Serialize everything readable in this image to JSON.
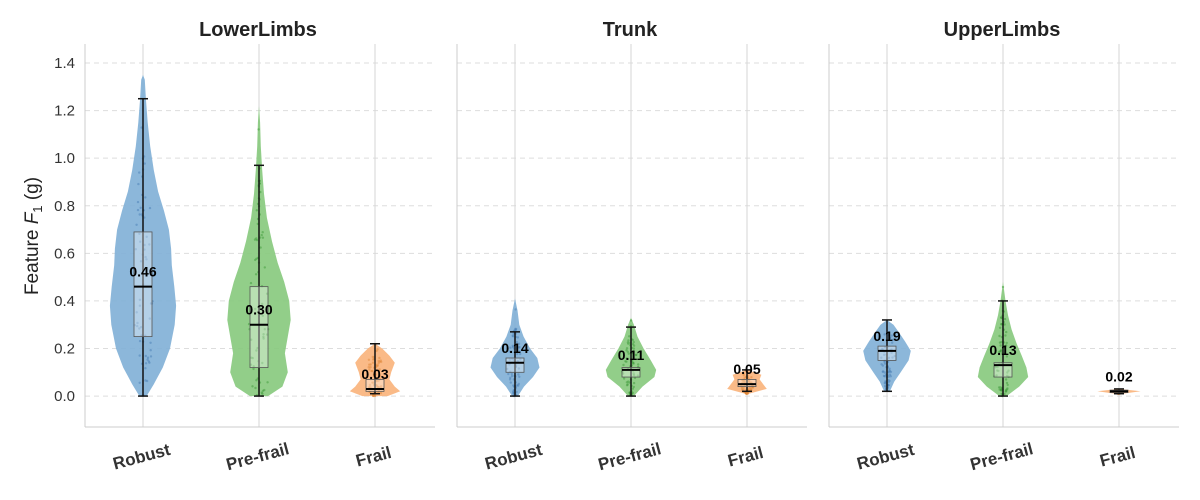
{
  "chart_data": {
    "type": "violin",
    "ylabel": {
      "prefix": "Feature ",
      "var": "F",
      "sub": "1",
      "suffix": " (g)"
    },
    "ylim": [
      -0.13,
      1.48
    ],
    "yticks": [
      0.0,
      0.2,
      0.4,
      0.6,
      0.8,
      1.0,
      1.2,
      1.4
    ],
    "ytick_labels": [
      "0.0",
      "0.2",
      "0.4",
      "0.6",
      "0.8",
      "1.0",
      "1.2",
      "1.4"
    ],
    "grid": "horizontal dashed",
    "categories": [
      "Robust",
      "Pre-frail",
      "Frail"
    ],
    "colors": {
      "Robust": "#7fafd6",
      "Pre-frail": "#86c97c",
      "Frail": "#f9b27a"
    },
    "point_colors": {
      "Robust": "#4a7fb5",
      "Pre-frail": "#3e9a3a",
      "Frail": "#e0883a"
    },
    "panels": [
      {
        "title": "LowerLimbs",
        "groups": [
          {
            "name": "Robust",
            "median": 0.46,
            "median_label": "0.46",
            "q1": 0.25,
            "q3": 0.69,
            "whisker_low": 0.0,
            "whisker_high": 1.25,
            "min": 0.0,
            "max": 1.35,
            "kde": [
              [
                0.0,
                0.1
              ],
              [
                0.05,
                0.3
              ],
              [
                0.12,
                0.55
              ],
              [
                0.2,
                0.75
              ],
              [
                0.3,
                0.88
              ],
              [
                0.38,
                0.92
              ],
              [
                0.46,
                0.87
              ],
              [
                0.55,
                0.8
              ],
              [
                0.62,
                0.78
              ],
              [
                0.7,
                0.72
              ],
              [
                0.78,
                0.58
              ],
              [
                0.86,
                0.42
              ],
              [
                0.95,
                0.3
              ],
              [
                1.05,
                0.2
              ],
              [
                1.15,
                0.13
              ],
              [
                1.25,
                0.08
              ],
              [
                1.33,
                0.05
              ],
              [
                1.35,
                0.0
              ]
            ]
          },
          {
            "name": "Pre-frail",
            "median": 0.3,
            "median_label": "0.30",
            "q1": 0.12,
            "q3": 0.46,
            "whisker_low": 0.0,
            "whisker_high": 0.97,
            "min": 0.0,
            "max": 1.22,
            "kde": [
              [
                0.0,
                0.25
              ],
              [
                0.04,
                0.65
              ],
              [
                0.1,
                0.8
              ],
              [
                0.18,
                0.72
              ],
              [
                0.25,
                0.8
              ],
              [
                0.32,
                0.88
              ],
              [
                0.4,
                0.84
              ],
              [
                0.48,
                0.7
              ],
              [
                0.56,
                0.52
              ],
              [
                0.65,
                0.36
              ],
              [
                0.75,
                0.22
              ],
              [
                0.85,
                0.14
              ],
              [
                0.95,
                0.09
              ],
              [
                1.05,
                0.05
              ],
              [
                1.15,
                0.03
              ],
              [
                1.22,
                0.0
              ]
            ]
          },
          {
            "name": "Frail",
            "median": 0.03,
            "median_label": "0.03",
            "q1": 0.02,
            "q3": 0.07,
            "whisker_low": 0.01,
            "whisker_high": 0.22,
            "min": 0.0,
            "max": 0.22,
            "kde": [
              [
                0.0,
                0.35
              ],
              [
                0.02,
                0.7
              ],
              [
                0.04,
                0.55
              ],
              [
                0.07,
                0.4
              ],
              [
                0.1,
                0.45
              ],
              [
                0.14,
                0.55
              ],
              [
                0.17,
                0.4
              ],
              [
                0.2,
                0.2
              ],
              [
                0.22,
                0.0
              ]
            ]
          }
        ]
      },
      {
        "title": "Trunk",
        "groups": [
          {
            "name": "Robust",
            "median": 0.14,
            "median_label": "0.14",
            "q1": 0.1,
            "q3": 0.16,
            "whisker_low": 0.0,
            "whisker_high": 0.27,
            "min": 0.0,
            "max": 0.41,
            "kde": [
              [
                0.0,
                0.08
              ],
              [
                0.04,
                0.25
              ],
              [
                0.08,
                0.5
              ],
              [
                0.12,
                0.68
              ],
              [
                0.16,
                0.62
              ],
              [
                0.2,
                0.42
              ],
              [
                0.25,
                0.24
              ],
              [
                0.3,
                0.12
              ],
              [
                0.36,
                0.07
              ],
              [
                0.41,
                0.0
              ]
            ]
          },
          {
            "name": "Pre-frail",
            "median": 0.11,
            "median_label": "0.11",
            "q1": 0.08,
            "q3": 0.12,
            "whisker_low": 0.0,
            "whisker_high": 0.29,
            "min": 0.0,
            "max": 0.33,
            "kde": [
              [
                0.0,
                0.08
              ],
              [
                0.04,
                0.32
              ],
              [
                0.08,
                0.65
              ],
              [
                0.11,
                0.7
              ],
              [
                0.15,
                0.55
              ],
              [
                0.2,
                0.35
              ],
              [
                0.25,
                0.18
              ],
              [
                0.3,
                0.08
              ],
              [
                0.33,
                0.0
              ]
            ]
          },
          {
            "name": "Frail",
            "median": 0.05,
            "median_label": "0.05",
            "q1": 0.04,
            "q3": 0.07,
            "whisker_low": 0.02,
            "whisker_high": 0.11,
            "min": 0.01,
            "max": 0.11,
            "kde": [
              [
                0.01,
                0.05
              ],
              [
                0.03,
                0.55
              ],
              [
                0.05,
                0.45
              ],
              [
                0.07,
                0.35
              ],
              [
                0.09,
                0.4
              ],
              [
                0.11,
                0.0
              ]
            ]
          }
        ]
      },
      {
        "title": "UpperLimbs",
        "groups": [
          {
            "name": "Robust",
            "median": 0.19,
            "median_label": "0.19",
            "q1": 0.15,
            "q3": 0.21,
            "whisker_low": 0.02,
            "whisker_high": 0.32,
            "min": 0.02,
            "max": 0.32,
            "kde": [
              [
                0.02,
                0.08
              ],
              [
                0.06,
                0.2
              ],
              [
                0.1,
                0.38
              ],
              [
                0.15,
                0.6
              ],
              [
                0.19,
                0.66
              ],
              [
                0.23,
                0.5
              ],
              [
                0.27,
                0.32
              ],
              [
                0.3,
                0.18
              ],
              [
                0.32,
                0.0
              ]
            ]
          },
          {
            "name": "Pre-frail",
            "median": 0.13,
            "median_label": "0.13",
            "q1": 0.08,
            "q3": 0.14,
            "whisker_low": 0.0,
            "whisker_high": 0.4,
            "min": 0.0,
            "max": 0.48,
            "kde": [
              [
                0.0,
                0.1
              ],
              [
                0.04,
                0.45
              ],
              [
                0.08,
                0.7
              ],
              [
                0.12,
                0.65
              ],
              [
                0.17,
                0.52
              ],
              [
                0.22,
                0.38
              ],
              [
                0.28,
                0.24
              ],
              [
                0.34,
                0.14
              ],
              [
                0.4,
                0.07
              ],
              [
                0.48,
                0.0
              ]
            ]
          },
          {
            "name": "Frail",
            "median": 0.02,
            "median_label": "0.02",
            "q1": 0.015,
            "q3": 0.025,
            "whisker_low": 0.01,
            "whisker_high": 0.03,
            "min": 0.01,
            "max": 0.03,
            "kde": [
              [
                0.01,
                0.1
              ],
              [
                0.02,
                0.6
              ],
              [
                0.03,
                0.0
              ]
            ]
          }
        ]
      }
    ]
  }
}
